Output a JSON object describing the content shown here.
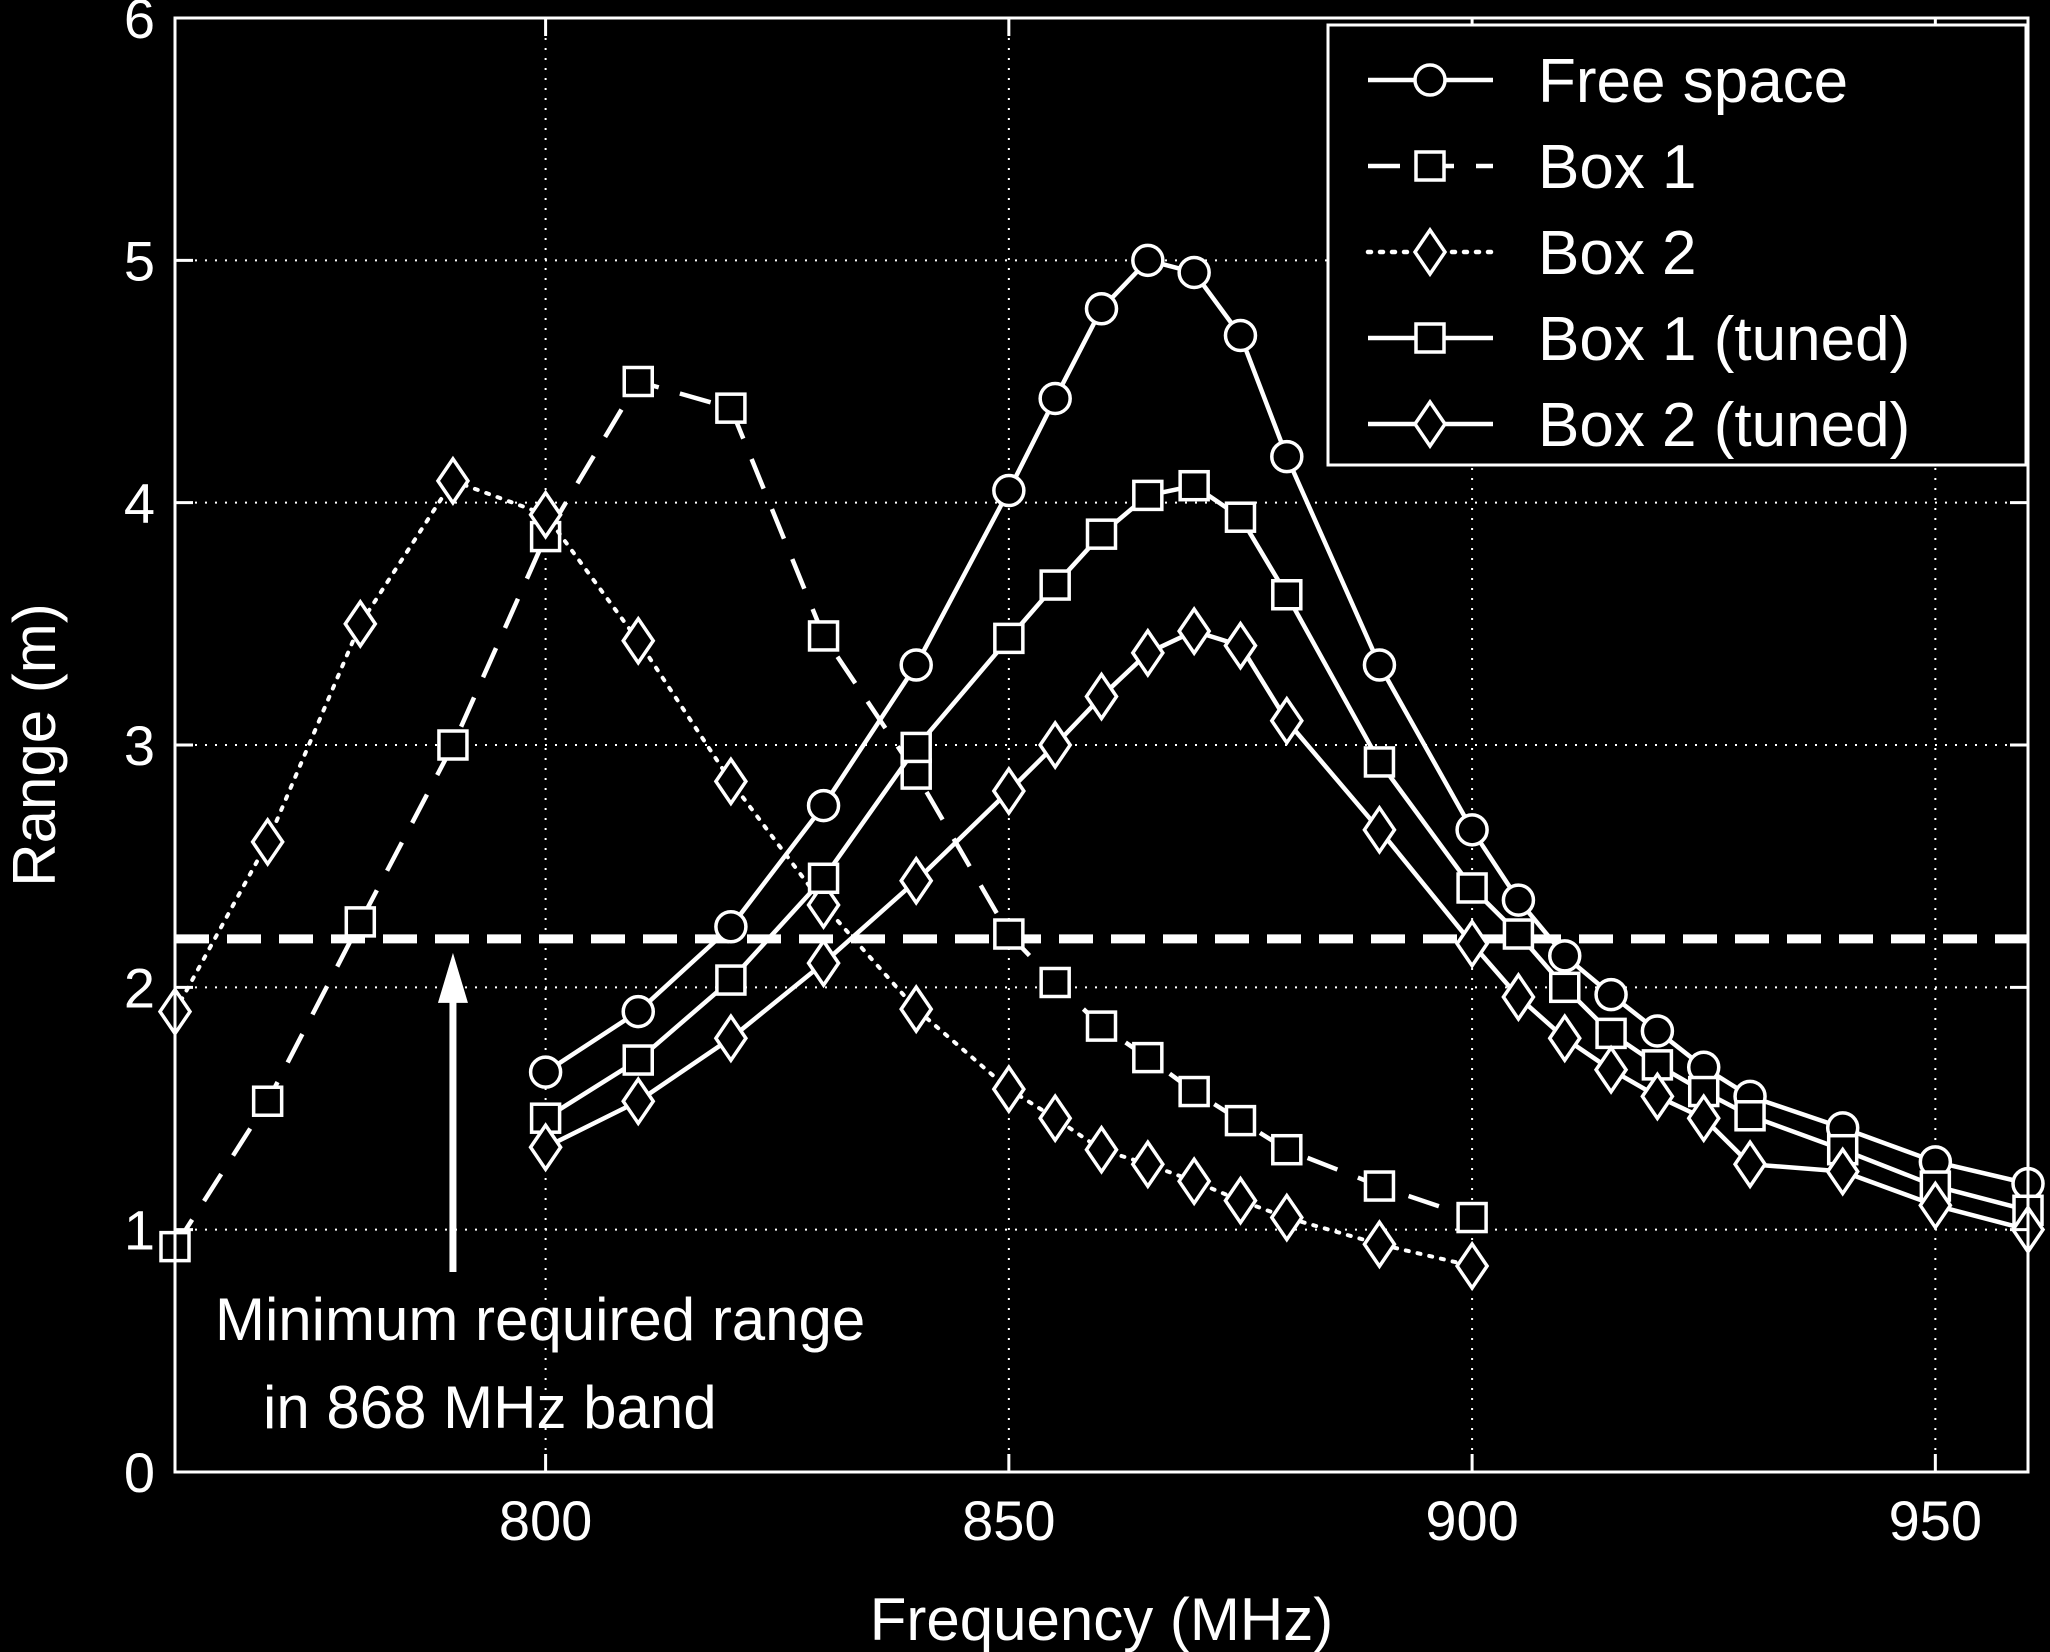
{
  "chart_data": {
    "type": "line",
    "title": "",
    "xlabel": "Frequency (MHz)",
    "ylabel": "Range (m)",
    "xlim": [
      760,
      960
    ],
    "ylim": [
      0,
      6
    ],
    "xticks": [
      800,
      850,
      900,
      950
    ],
    "yticks": [
      0,
      1,
      2,
      3,
      4,
      5,
      6
    ],
    "grid": true,
    "legend_position": "top-right",
    "colors": {
      "background": "#000000",
      "foreground": "#ffffff"
    },
    "threshold": {
      "value": 2.2,
      "style": "dashed",
      "annotation": [
        "Minimum required range",
        "in 868 MHz band"
      ],
      "arrow_x": 790
    },
    "series": [
      {
        "name": "Free space",
        "style": "solid",
        "marker": "circle",
        "points": [
          [
            800,
            1.65
          ],
          [
            810,
            1.9
          ],
          [
            820,
            2.25
          ],
          [
            830,
            2.75
          ],
          [
            840,
            3.33
          ],
          [
            850,
            4.05
          ],
          [
            855,
            4.43
          ],
          [
            860,
            4.8
          ],
          [
            865,
            5.0
          ],
          [
            870,
            4.95
          ],
          [
            875,
            4.69
          ],
          [
            880,
            4.19
          ],
          [
            890,
            3.33
          ],
          [
            900,
            2.65
          ],
          [
            905,
            2.36
          ],
          [
            910,
            2.13
          ],
          [
            915,
            1.97
          ],
          [
            920,
            1.82
          ],
          [
            925,
            1.67
          ],
          [
            930,
            1.55
          ],
          [
            940,
            1.42
          ],
          [
            950,
            1.28
          ],
          [
            960,
            1.19
          ]
        ]
      },
      {
        "name": "Box 1",
        "style": "dashed",
        "marker": "square",
        "points": [
          [
            760,
            0.93
          ],
          [
            770,
            1.53
          ],
          [
            780,
            2.27
          ],
          [
            790,
            3.0
          ],
          [
            800,
            3.86
          ],
          [
            810,
            4.5
          ],
          [
            820,
            4.39
          ],
          [
            830,
            3.45
          ],
          [
            840,
            2.88
          ],
          [
            850,
            2.22
          ],
          [
            855,
            2.02
          ],
          [
            860,
            1.84
          ],
          [
            865,
            1.71
          ],
          [
            870,
            1.57
          ],
          [
            875,
            1.45
          ],
          [
            880,
            1.33
          ],
          [
            890,
            1.18
          ],
          [
            900,
            1.05
          ]
        ]
      },
      {
        "name": "Box 2",
        "style": "dotted",
        "marker": "diamond",
        "points": [
          [
            760,
            1.9
          ],
          [
            770,
            2.6
          ],
          [
            780,
            3.5
          ],
          [
            790,
            4.09
          ],
          [
            800,
            3.95
          ],
          [
            810,
            3.43
          ],
          [
            820,
            2.85
          ],
          [
            830,
            2.34
          ],
          [
            840,
            1.91
          ],
          [
            850,
            1.58
          ],
          [
            855,
            1.46
          ],
          [
            860,
            1.33
          ],
          [
            865,
            1.27
          ],
          [
            870,
            1.2
          ],
          [
            875,
            1.12
          ],
          [
            880,
            1.05
          ],
          [
            890,
            0.94
          ],
          [
            900,
            0.85
          ]
        ]
      },
      {
        "name": "Box 1 (tuned)",
        "style": "solid",
        "marker": "square",
        "points": [
          [
            800,
            1.46
          ],
          [
            810,
            1.7
          ],
          [
            820,
            2.03
          ],
          [
            830,
            2.45
          ],
          [
            840,
            2.99
          ],
          [
            850,
            3.44
          ],
          [
            855,
            3.66
          ],
          [
            860,
            3.87
          ],
          [
            865,
            4.03
          ],
          [
            870,
            4.07
          ],
          [
            875,
            3.94
          ],
          [
            880,
            3.62
          ],
          [
            890,
            2.93
          ],
          [
            900,
            2.41
          ],
          [
            905,
            2.22
          ],
          [
            910,
            2.0
          ],
          [
            915,
            1.81
          ],
          [
            920,
            1.68
          ],
          [
            925,
            1.57
          ],
          [
            930,
            1.47
          ],
          [
            940,
            1.33
          ],
          [
            950,
            1.18
          ],
          [
            960,
            1.08
          ]
        ]
      },
      {
        "name": "Box 2 (tuned)",
        "style": "solid",
        "marker": "diamond",
        "points": [
          [
            800,
            1.34
          ],
          [
            810,
            1.53
          ],
          [
            820,
            1.79
          ],
          [
            830,
            2.1
          ],
          [
            840,
            2.44
          ],
          [
            850,
            2.81
          ],
          [
            855,
            3.0
          ],
          [
            860,
            3.2
          ],
          [
            865,
            3.38
          ],
          [
            870,
            3.47
          ],
          [
            875,
            3.41
          ],
          [
            880,
            3.1
          ],
          [
            890,
            2.65
          ],
          [
            900,
            2.18
          ],
          [
            905,
            1.96
          ],
          [
            910,
            1.79
          ],
          [
            915,
            1.66
          ],
          [
            920,
            1.55
          ],
          [
            925,
            1.46
          ],
          [
            930,
            1.27
          ],
          [
            940,
            1.24
          ],
          [
            950,
            1.1
          ],
          [
            960,
            1.0
          ]
        ]
      }
    ]
  }
}
